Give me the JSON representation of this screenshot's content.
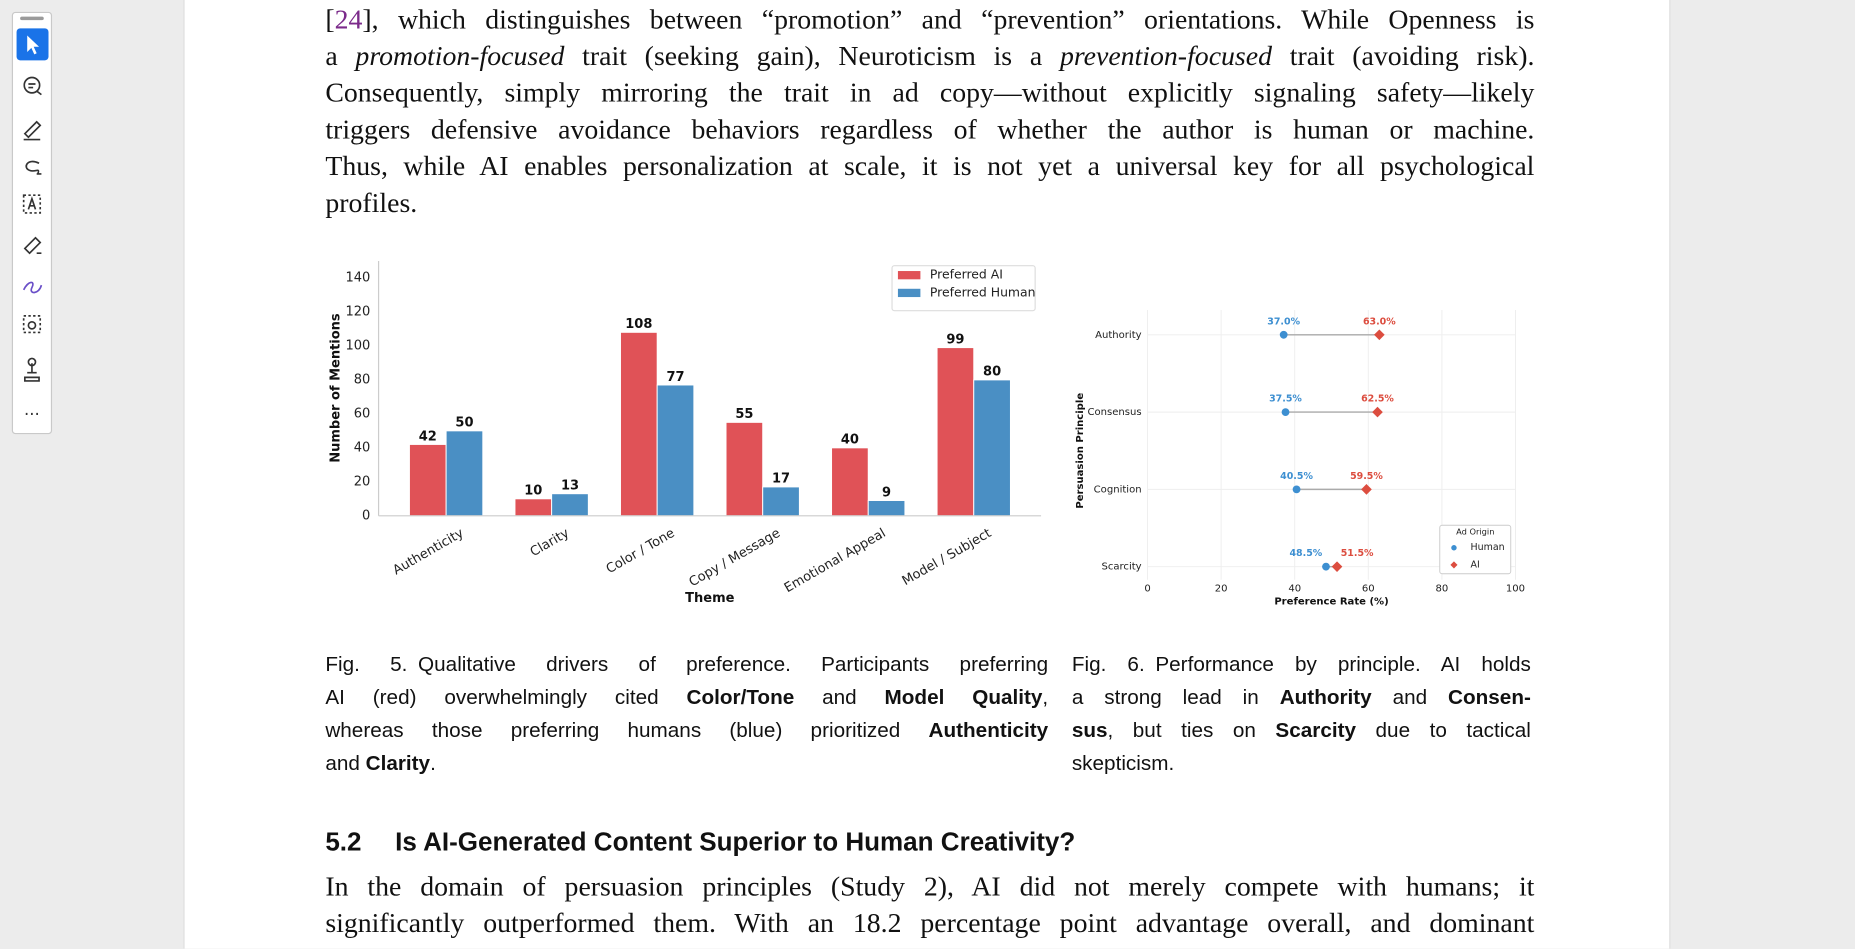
{
  "document": {
    "toolbar_more": "···",
    "paragraph_1": [
      [
        "[",
        "24",
        "], which distinguishes between “promotion” and “prevention” orientations. While Openness is"
      ],
      [
        "a ",
        "promotion-focused",
        " trait (seeking gain), Neuroticism is a ",
        "prevention-focused",
        " trait (avoiding risk)."
      ],
      [
        "Consequently, simply mirroring the trait in ad copy—without explicitly signaling safety—likely"
      ],
      [
        "triggers defensive avoidance behaviors regardless of whether the author is human or machine."
      ],
      [
        "Thus, while AI enables personalization at scale, it is not yet a universal key for all psychological"
      ],
      [
        "profiles."
      ]
    ],
    "figure_5_caption": [
      [
        "Fig. 5.",
        "Qualitative drivers of preference. Participants preferring"
      ],
      [
        "AI (red) overwhelmingly cited ",
        "Color/Tone",
        " and ",
        "Model Quality",
        ","
      ],
      [
        "whereas those preferring humans (blue) prioritized ",
        "Authenticity"
      ],
      [
        "and ",
        "Clarity",
        "."
      ]
    ],
    "figure_6_caption": [
      [
        "Fig. 6.",
        "Performance by principle. AI holds"
      ],
      [
        "a strong lead in ",
        "Authority",
        " and ",
        "Consen-"
      ],
      [
        "sus",
        ", but ties on ",
        "Scarcity",
        " due to tactical"
      ],
      [
        "skepticism."
      ]
    ],
    "section": {
      "number": "5.2",
      "title": "Is AI-Generated Content Superior to Human Creativity?"
    },
    "paragraph_2": [
      "In the domain of persuasion principles (Study 2), AI did not merely compete with humans; it",
      "significantly outperformed them. With an 18.2 percentage point advantage overall, and dominant"
    ]
  },
  "chart_data": [
    {
      "type": "bar",
      "categories": [
        "Authenticity",
        "Clarity",
        "Color / Tone",
        "Copy / Message",
        "Emotional Appeal",
        "Model / Subject"
      ],
      "series": [
        {
          "name": "Preferred AI",
          "color": "#e05257",
          "values": [
            42,
            10,
            108,
            55,
            40,
            99
          ]
        },
        {
          "name": "Preferred Human",
          "color": "#4a8fc4",
          "values": [
            50,
            13,
            77,
            17,
            9,
            80
          ]
        }
      ],
      "ylim": [
        0,
        150
      ],
      "yticks": [
        0,
        20,
        40,
        60,
        80,
        100,
        120,
        140
      ],
      "xlabel": "Theme",
      "ylabel": "Number of Mentions",
      "legend": "upper right",
      "grid": false
    },
    {
      "type": "dumbbell",
      "categories": [
        "Authority",
        "Consensus",
        "Cognition",
        "Scarcity"
      ],
      "series": [
        {
          "name": "Human",
          "color": "#3d8fd1",
          "marker": "circle",
          "values": [
            37.0,
            37.5,
            40.5,
            48.5
          ],
          "value_labels": [
            "37.0%",
            "37.5%",
            "40.5%",
            "48.5%"
          ]
        },
        {
          "name": "AI",
          "color": "#dc4d3f",
          "marker": "diamond",
          "values": [
            63.0,
            62.5,
            59.5,
            51.5
          ],
          "value_labels": [
            "63.0%",
            "62.5%",
            "59.5%",
            "51.5%"
          ]
        }
      ],
      "xlim": [
        0,
        100
      ],
      "xticks": [
        0,
        20,
        40,
        60,
        80,
        100
      ],
      "xlabel": "Preference Rate (%)",
      "ylabel": "Persuasion Principle",
      "legend": "lower right",
      "legend_title": "Ad Origin",
      "grid": true
    }
  ]
}
